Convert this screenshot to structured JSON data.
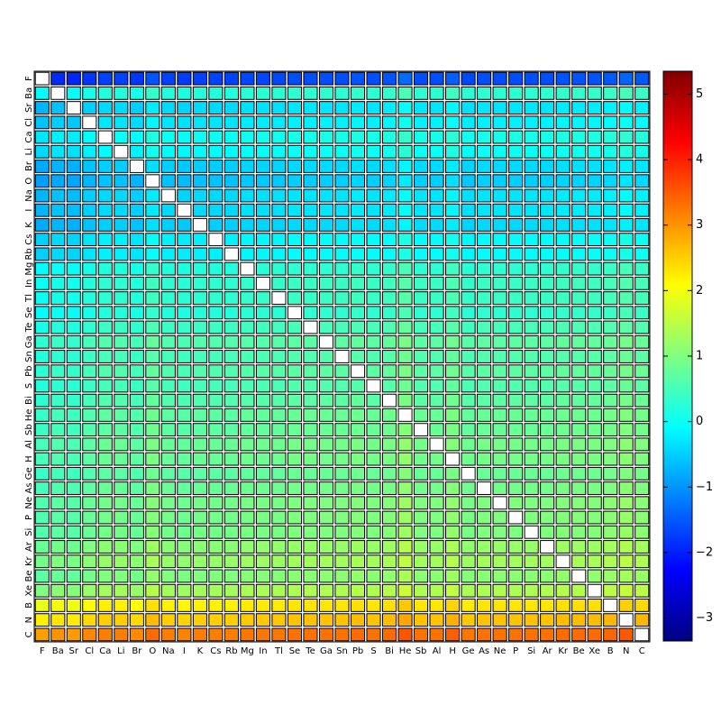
{
  "chart_data": {
    "type": "heatmap",
    "title": "",
    "xlabel": "",
    "ylabel": "",
    "elements": [
      "F",
      "Ba",
      "Sr",
      "Cl",
      "Ca",
      "Li",
      "Br",
      "O",
      "Na",
      "I",
      "K",
      "Cs",
      "Rb",
      "Mg",
      "In",
      "Tl",
      "Se",
      "Te",
      "Ga",
      "Sn",
      "Pb",
      "S",
      "Bi",
      "He",
      "Sb",
      "Al",
      "H",
      "Ge",
      "As",
      "Ne",
      "P",
      "Si",
      "Ar",
      "Kr",
      "Be",
      "Xe",
      "B",
      "N",
      "C"
    ],
    "row_mean_values": [
      -1.7,
      0.2,
      -0.4,
      -0.3,
      0.0,
      -0.1,
      -0.5,
      -0.6,
      -0.4,
      -0.4,
      -0.5,
      -0.2,
      -0.2,
      0.2,
      0.3,
      0.3,
      0.2,
      0.4,
      0.6,
      0.5,
      0.6,
      0.5,
      0.6,
      0.7,
      0.7,
      0.8,
      0.8,
      0.7,
      0.8,
      0.9,
      0.9,
      0.9,
      1.1,
      1.2,
      1.0,
      1.3,
      2.2,
      2.5,
      3.2
    ],
    "col_offsets": [
      -0.3,
      -0.2,
      -0.25,
      -0.1,
      0.0,
      0.0,
      -0.1,
      0.15,
      0.0,
      -0.05,
      0.0,
      0.0,
      0.0,
      0.05,
      0.05,
      0.05,
      0.1,
      0.1,
      0.1,
      0.1,
      0.15,
      0.1,
      0.15,
      0.35,
      0.1,
      0.1,
      0.25,
      0.05,
      0.1,
      0.1,
      0.1,
      0.1,
      0.1,
      0.15,
      0.15,
      0.15,
      0.2,
      0.3,
      0.2
    ],
    "diagonal": "blank",
    "colorbar": {
      "min": -3.35,
      "max": 5.35,
      "ticks": [
        "-3",
        "-2",
        "-1",
        "0",
        "1",
        "2",
        "3",
        "4",
        "5"
      ],
      "colormap": "jet"
    },
    "grid": "on"
  }
}
